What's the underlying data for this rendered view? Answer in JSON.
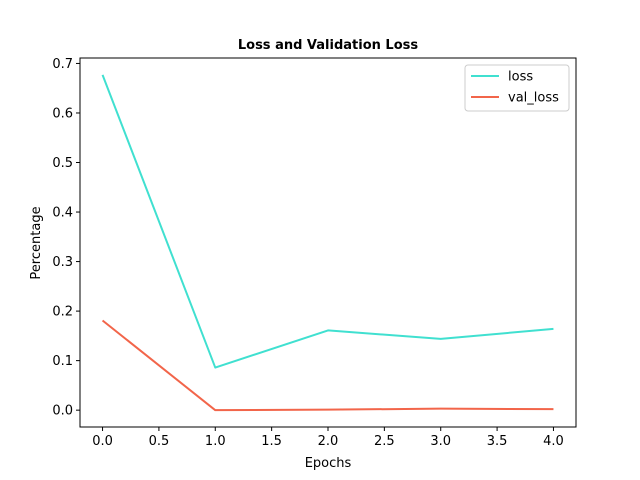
{
  "chart_data": {
    "type": "line",
    "title": "Loss and Validation Loss",
    "xlabel": "Epochs",
    "ylabel": "Percentage",
    "x": [
      0.0,
      1.0,
      2.0,
      3.0,
      4.0
    ],
    "series": [
      {
        "name": "loss",
        "color": "#40e0d0",
        "values": [
          0.677,
          0.086,
          0.161,
          0.144,
          0.164
        ]
      },
      {
        "name": "val_loss",
        "color": "#f2654a",
        "values": [
          0.181,
          0.0,
          0.001,
          0.003,
          0.002
        ]
      }
    ],
    "xlim": [
      -0.2,
      4.2
    ],
    "ylim": [
      -0.034,
      0.711
    ],
    "xticks": [
      0.0,
      0.5,
      1.0,
      1.5,
      2.0,
      2.5,
      3.0,
      3.5,
      4.0
    ],
    "xtick_labels": [
      "0.0",
      "0.5",
      "1.0",
      "1.5",
      "2.0",
      "2.5",
      "3.0",
      "3.5",
      "4.0"
    ],
    "yticks": [
      0.0,
      0.1,
      0.2,
      0.3,
      0.4,
      0.5,
      0.6,
      0.7
    ],
    "ytick_labels": [
      "0.0",
      "0.1",
      "0.2",
      "0.3",
      "0.4",
      "0.5",
      "0.6",
      "0.7"
    ],
    "grid": false,
    "legend_position": "top-right"
  }
}
